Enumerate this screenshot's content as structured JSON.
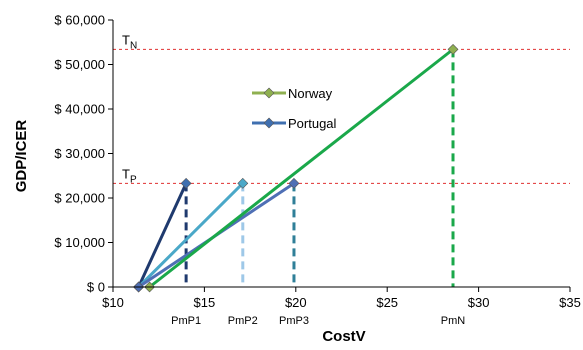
{
  "chart_data": {
    "type": "line",
    "xlabel": "CostV",
    "ylabel": "GDP/ICER",
    "xlim": [
      10,
      35
    ],
    "ylim": [
      0,
      60000
    ],
    "x_ticks": [
      10,
      15,
      20,
      25,
      30,
      35
    ],
    "x_tick_labels": [
      "$10",
      "$15",
      "$20",
      "$25",
      "$30",
      "$35"
    ],
    "y_ticks": [
      0,
      10000,
      20000,
      30000,
      40000,
      50000,
      60000
    ],
    "y_tick_labels": [
      "$ 0",
      "$ 10,000",
      "$ 20,000",
      "$ 30,000",
      "$ 40,000",
      "$ 50,000",
      "$ 60,000"
    ],
    "legend": {
      "placement": "center-left",
      "entries": [
        "Norway",
        "Portugal"
      ]
    },
    "thresholds": [
      {
        "label_main": "T",
        "label_sub": "N",
        "y": 53400,
        "color": "#e03030"
      },
      {
        "label_main": "T",
        "label_sub": "P",
        "y": 23300,
        "color": "#e03030"
      }
    ],
    "series": [
      {
        "name": "Portugal",
        "color": "#1f3a6e",
        "marker_color": "#3f6fb0",
        "points": [
          [
            11.4,
            0
          ],
          [
            14.0,
            23300
          ]
        ]
      },
      {
        "color": "#4aa8c8",
        "marker_color": "#4aa8c8",
        "points": [
          [
            11.4,
            0
          ],
          [
            17.1,
            23300
          ]
        ]
      },
      {
        "color": "#4f6fb5",
        "marker_color": "#4f6fb5",
        "points": [
          [
            11.4,
            0
          ],
          [
            19.9,
            23300
          ]
        ]
      },
      {
        "name": "Norway",
        "color": "#1aa84a",
        "marker_color": "#8fb050",
        "points": [
          [
            12.0,
            0
          ],
          [
            28.6,
            53400
          ]
        ]
      }
    ],
    "drop_lines": [
      {
        "label": "PmP1",
        "x": 14.0,
        "y": 23300,
        "color": "#1f3a6e"
      },
      {
        "label": "PmP2",
        "x": 17.1,
        "y": 23300,
        "color": "#9ec8e8"
      },
      {
        "label": "PmP3",
        "x": 19.9,
        "y": 23300,
        "color": "#2f7f98"
      },
      {
        "label": "PmN",
        "x": 28.6,
        "y": 53400,
        "color": "#1aa84a"
      }
    ]
  },
  "legend_items": [
    {
      "label": "Norway",
      "color": "#8fb050",
      "line_color": "#8fb050"
    },
    {
      "label": "Portugal",
      "color": "#3f6fb0",
      "line_color": "#3f6fb0"
    }
  ]
}
